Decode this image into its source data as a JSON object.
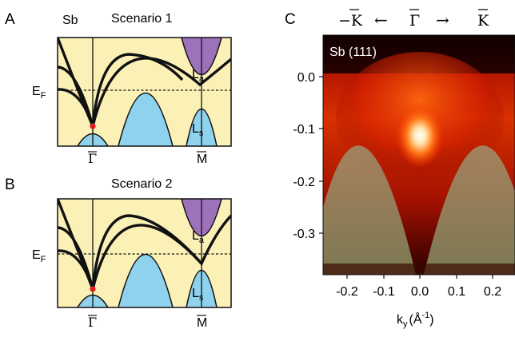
{
  "figure": {
    "panelA": {
      "letter": "A",
      "material": "Sb",
      "scenario": "Scenario 1",
      "fermi": "E",
      "fermi_sub": "F",
      "k_left": "Γ",
      "k_right": "M",
      "band_upper": "L",
      "band_upper_sub": "a",
      "band_lower": "L",
      "band_lower_sub": "s"
    },
    "panelB": {
      "letter": "B",
      "scenario": "Scenario 2",
      "fermi": "E",
      "fermi_sub": "F",
      "k_left": "Γ",
      "k_right": "M",
      "band_upper": "L",
      "band_upper_sub": "a",
      "band_lower": "L",
      "band_lower_sub": "s"
    },
    "panelC": {
      "letter": "C",
      "top_left": "−K",
      "arrow_left": "←",
      "top_mid": "Γ",
      "arrow_right": "→",
      "top_right": "K",
      "inset_label": "Sb (111)",
      "y_ticks": [
        "0.0",
        "-0.1",
        "-0.2",
        "-0.3"
      ],
      "x_ticks": [
        "-0.2",
        "-0.1",
        "0.0",
        "0.1",
        "0.2"
      ],
      "x_label_main": "k",
      "x_label_sub": "y",
      "x_label_unit_open": "(Å",
      "x_label_exp": "-1",
      "x_label_unit_close": ")"
    }
  },
  "colors": {
    "panel_bg": "#fbf1b7",
    "bulk_blue": "#8fd2ee",
    "bulk_purple": "#9d72ba",
    "dirac_point": "#e51b1b"
  }
}
